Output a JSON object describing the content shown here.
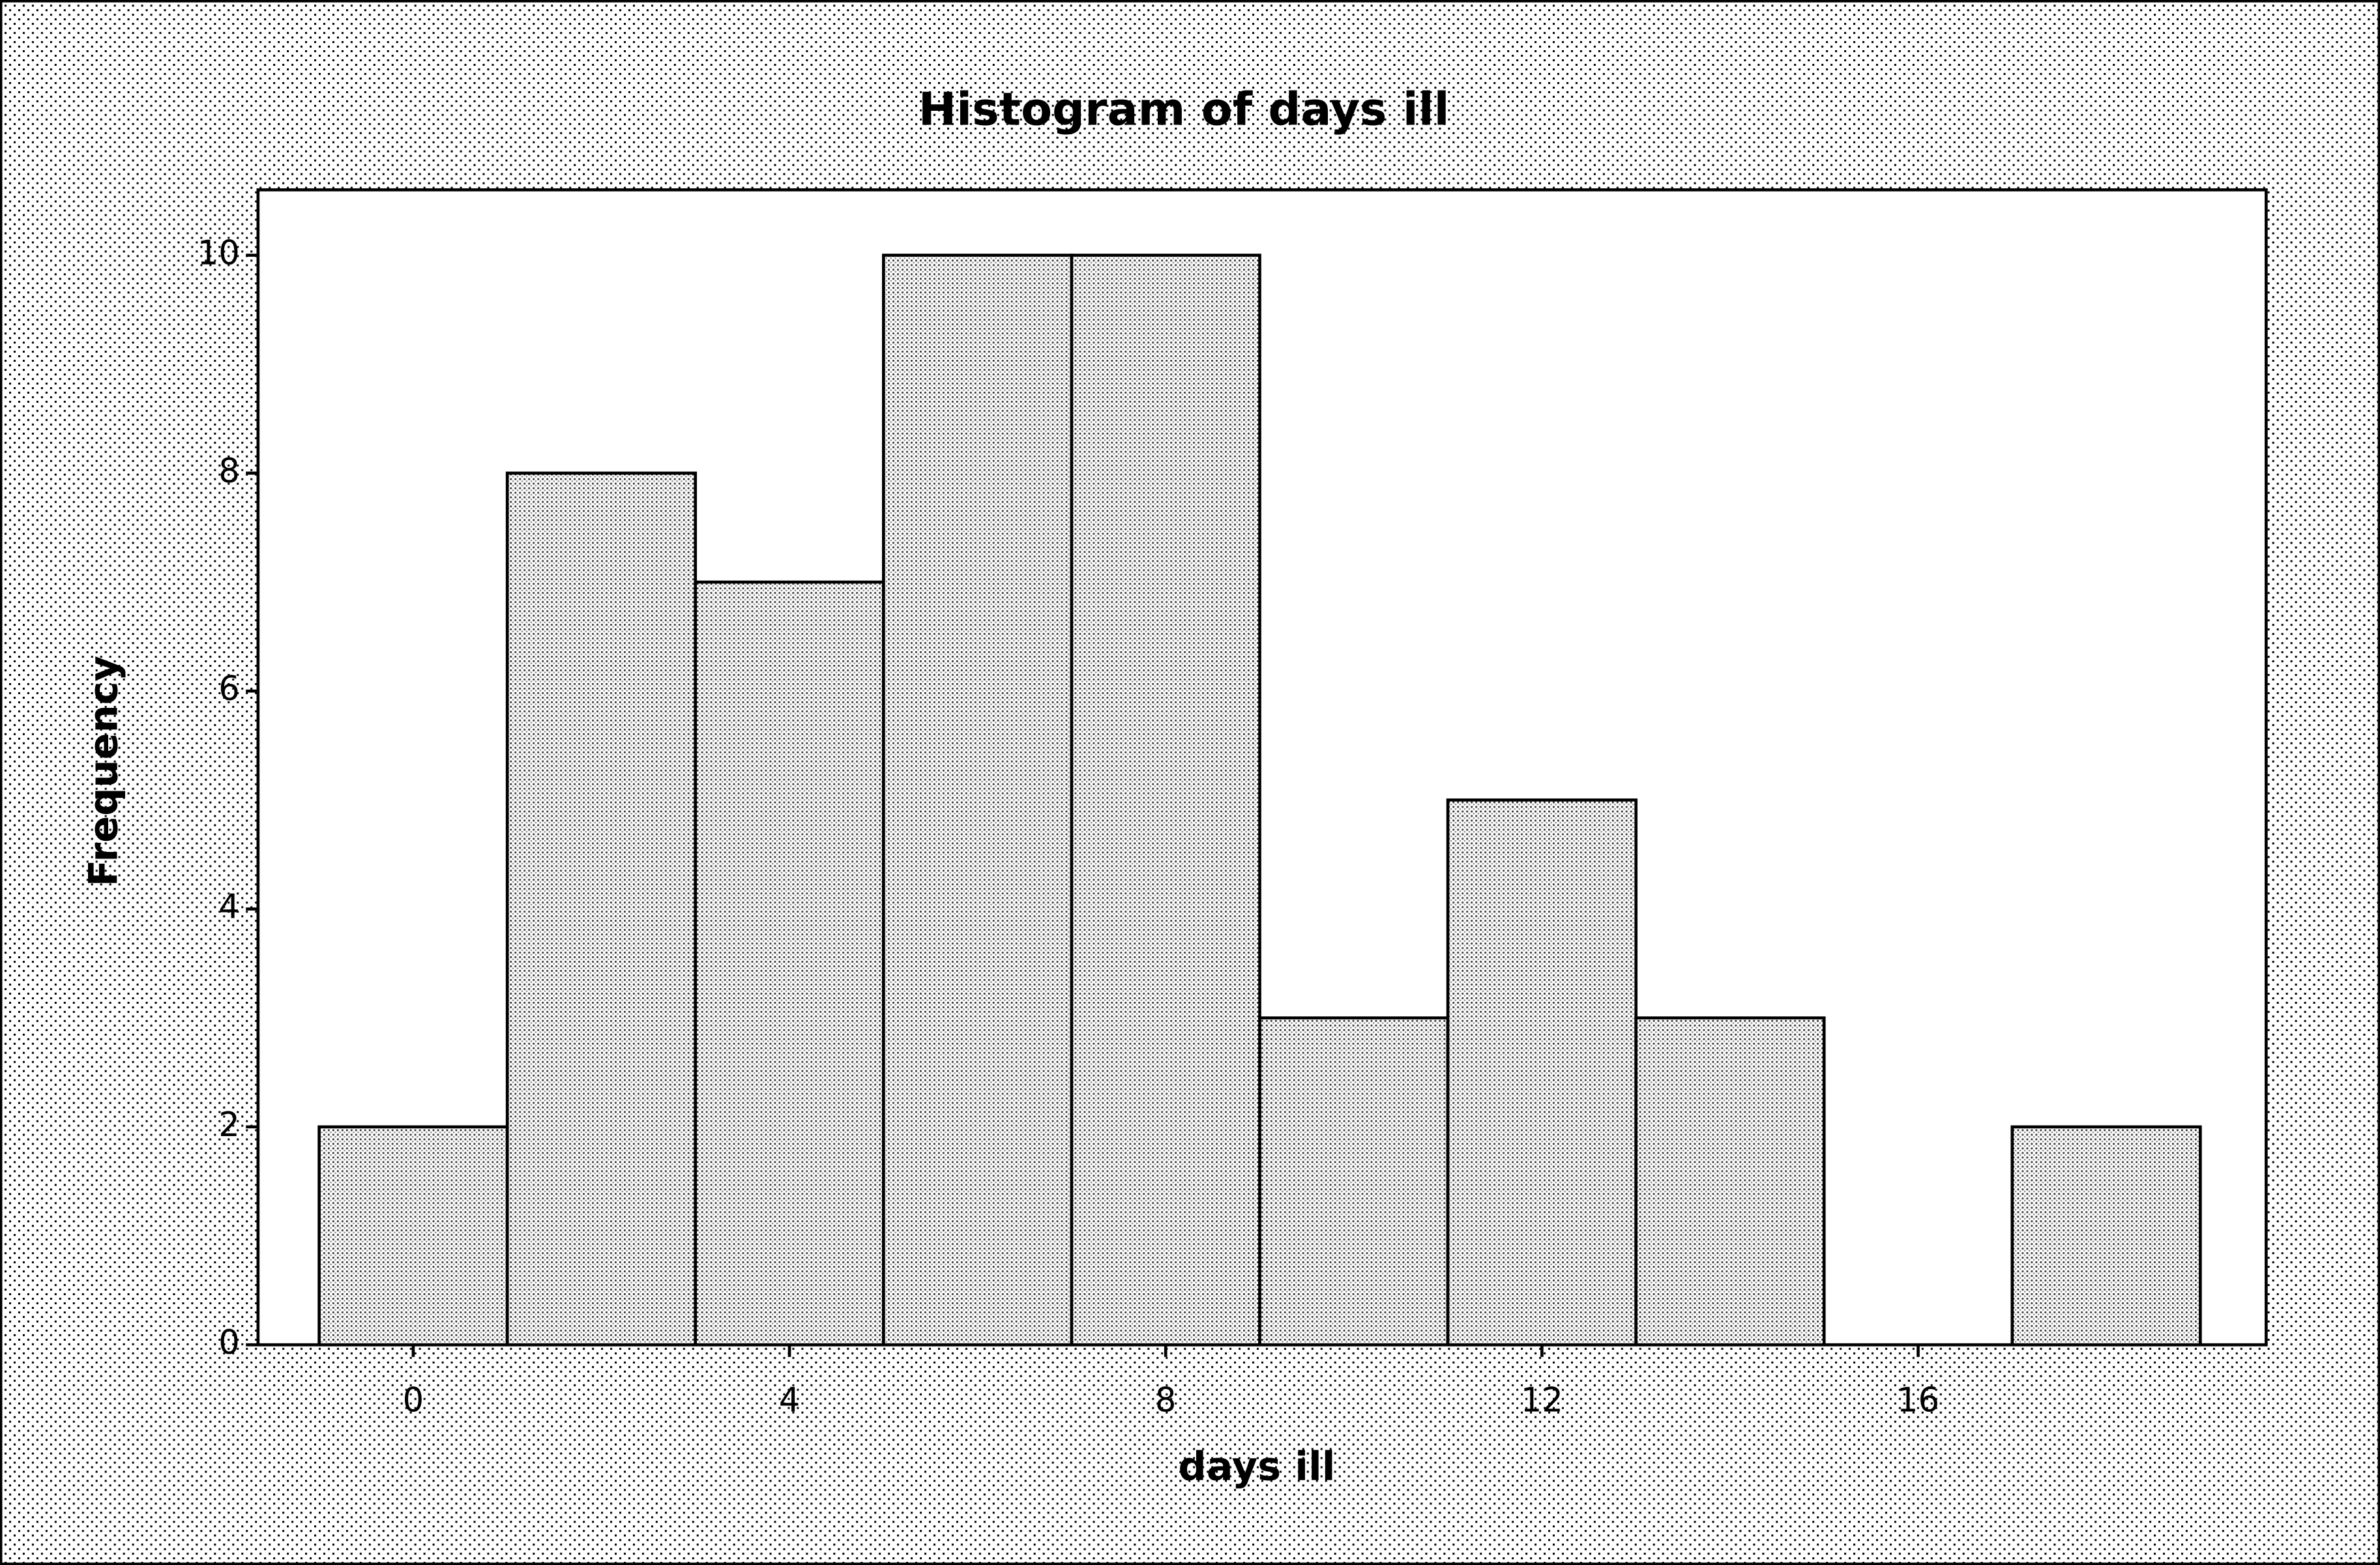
{
  "chart_data": {
    "type": "histogram",
    "title": "Histogram of days ill",
    "x_label": "days ill",
    "y_label": "Frequency",
    "bins": [
      -1,
      1,
      3,
      5,
      7,
      9,
      11,
      13,
      15,
      17,
      19
    ],
    "values": [
      2,
      8,
      7,
      10,
      10,
      3,
      5,
      3,
      0,
      2
    ],
    "color": "#555555",
    "xlim": [
      -1.65,
      19.7
    ],
    "ylim": [
      0,
      10.6
    ],
    "xticks": [
      0,
      4,
      8,
      12,
      16
    ],
    "yticks": [
      0,
      2,
      4,
      6,
      8,
      10
    ]
  }
}
